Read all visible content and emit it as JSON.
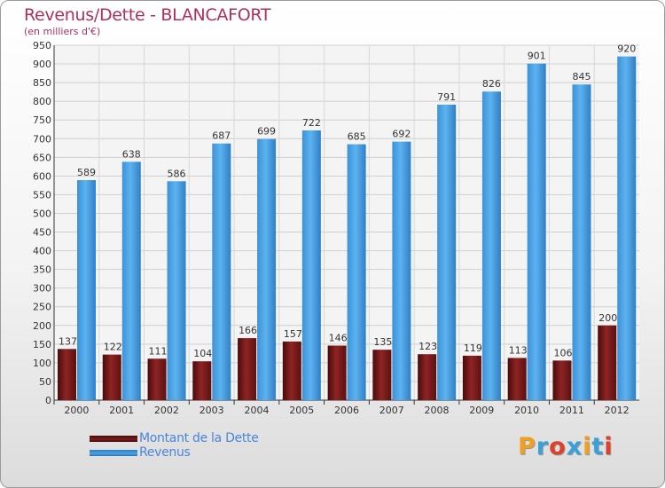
{
  "title": "Revenus/Dette - BLANCAFORT",
  "subtitle": "(en milliers d'€)",
  "logo": {
    "text": "Proxiti",
    "letter_colors": [
      "#f0a020",
      "#3aa0d8",
      "#e0402a",
      "#3aa0d8",
      "#f0a020",
      "#3aa0d8",
      "#e0402a"
    ]
  },
  "colors": {
    "dette": "#7a1c1c",
    "revenus": "#4aa3e6",
    "title": "#b0305a",
    "legend_text": "#4a86d8"
  },
  "chart_data": {
    "type": "bar",
    "title": "Revenus/Dette - BLANCAFORT",
    "subtitle": "(en milliers d'€)",
    "categories": [
      "2000",
      "2001",
      "2002",
      "2003",
      "2004",
      "2005",
      "2006",
      "2007",
      "2008",
      "2009",
      "2010",
      "2011",
      "2012"
    ],
    "series": [
      {
        "name": "Montant de la Dette",
        "color": "#7a1c1c",
        "values": [
          137,
          122,
          111,
          104,
          166,
          157,
          146,
          135,
          123,
          119,
          113,
          106,
          200
        ]
      },
      {
        "name": "Revenus",
        "color": "#4aa3e6",
        "values": [
          589,
          638,
          586,
          687,
          699,
          722,
          685,
          692,
          791,
          826,
          901,
          845,
          920
        ]
      }
    ],
    "yticks": [
      0,
      50,
      100,
      150,
      200,
      250,
      300,
      350,
      400,
      450,
      500,
      550,
      600,
      650,
      700,
      750,
      800,
      850,
      900,
      950
    ],
    "ylim": [
      0,
      950
    ],
    "grid": true,
    "legend": "bottom-left"
  }
}
